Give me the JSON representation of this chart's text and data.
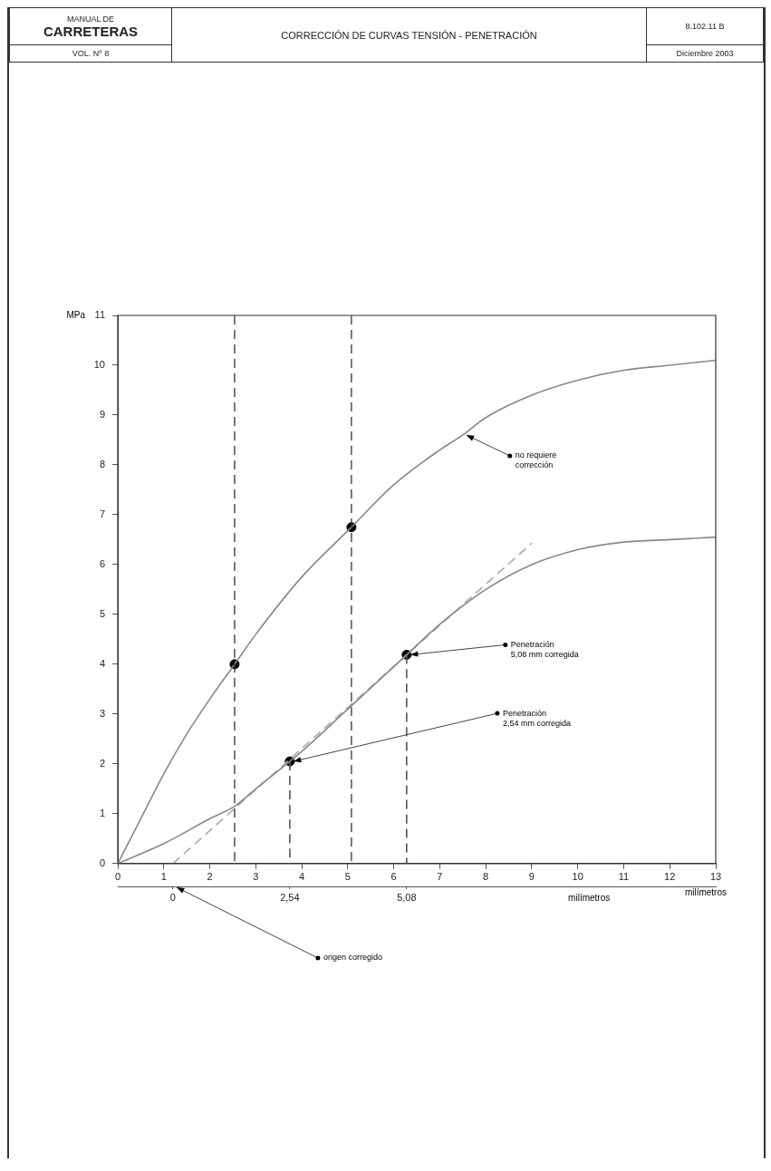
{
  "chart_data": {
    "type": "line",
    "title": "CORRECCIÓN DE CURVAS TENSIÓN - PENETRACIÓN",
    "ylabel": "MPa",
    "xlabel": "milímetros",
    "x2label": "milímetros",
    "xlim": [
      0,
      13
    ],
    "xticks": [
      0,
      1,
      2,
      3,
      4,
      5,
      6,
      7,
      8,
      9,
      10,
      11,
      12,
      13
    ],
    "ylim": [
      0,
      11
    ],
    "yticks": [
      0,
      1,
      2,
      3,
      4,
      5,
      6,
      7,
      8,
      9,
      10,
      11
    ],
    "x2lim": [
      -1.2,
      11.8
    ],
    "x2ticks": [
      0,
      {
        "value": 2.54,
        "label": "2,54"
      },
      {
        "value": 5.08,
        "label": "5,08"
      }
    ],
    "grid": false,
    "legend": false,
    "series": [
      {
        "type": "line",
        "color": "#888888",
        "x": [
          0,
          0.5,
          1,
          1.5,
          2,
          2.54,
          3,
          4,
          5.08,
          6,
          7,
          7.5,
          8,
          9,
          10,
          11,
          12,
          13
        ],
        "values": [
          0,
          0.9,
          1.8,
          2.6,
          3.3,
          4.0,
          4.6,
          5.75,
          6.75,
          7.6,
          8.3,
          8.6,
          8.95,
          9.4,
          9.7,
          9.9,
          10.0,
          10.1
        ]
      },
      {
        "type": "line",
        "color": "#888888",
        "x": [
          0,
          1,
          2,
          2.54,
          3,
          3.74,
          4,
          5,
          6,
          6.28,
          7,
          8,
          9,
          10,
          11,
          12,
          13
        ],
        "values": [
          0,
          0.4,
          0.9,
          1.15,
          1.5,
          2.05,
          2.25,
          3.1,
          3.95,
          4.19,
          4.8,
          5.5,
          6.0,
          6.3,
          6.45,
          6.5,
          6.55
        ]
      },
      {
        "type": "line",
        "color": "#aaaaaa",
        "line_style": "dashed",
        "x": [
          1.2,
          9.0
        ],
        "values": [
          0,
          6.43
        ]
      },
      {
        "type": "line",
        "color": "#555555",
        "line_style": "dashed",
        "x": [
          3.74,
          3.74
        ],
        "values": [
          2.05,
          0
        ]
      },
      {
        "type": "line",
        "color": "#555555",
        "line_style": "dashed",
        "x": [
          6.28,
          6.28
        ],
        "values": [
          4.19,
          0
        ]
      },
      {
        "type": "scatter",
        "color": "#000000",
        "marker": "circle",
        "x": [
          2.54,
          5.08,
          3.74,
          6.28
        ],
        "values": [
          4.0,
          6.75,
          2.05,
          4.19
        ]
      }
    ],
    "ref_lines": [
      {
        "axis": "x",
        "value": 2.54,
        "color": "#333333",
        "line_style": "dashed"
      },
      {
        "axis": "x",
        "value": 5.08,
        "color": "#333333",
        "line_style": "dashed"
      }
    ],
    "annotations": [
      "MANUAL DE",
      "CARRETERAS",
      "VOL. Nº 8",
      "8.102.11 B",
      "Diciembre 2003",
      {
        "text": "no requiere\ncorrección",
        "x": 7.5,
        "y": 8.6
      },
      {
        "text": "Penetración\n5,08 mm corregida",
        "x": 6.28,
        "y": 4.19
      },
      {
        "text": "Penetración\n2,54 mm corregida",
        "x": 3.74,
        "y": 2.05
      },
      "origen corregido"
    ]
  }
}
